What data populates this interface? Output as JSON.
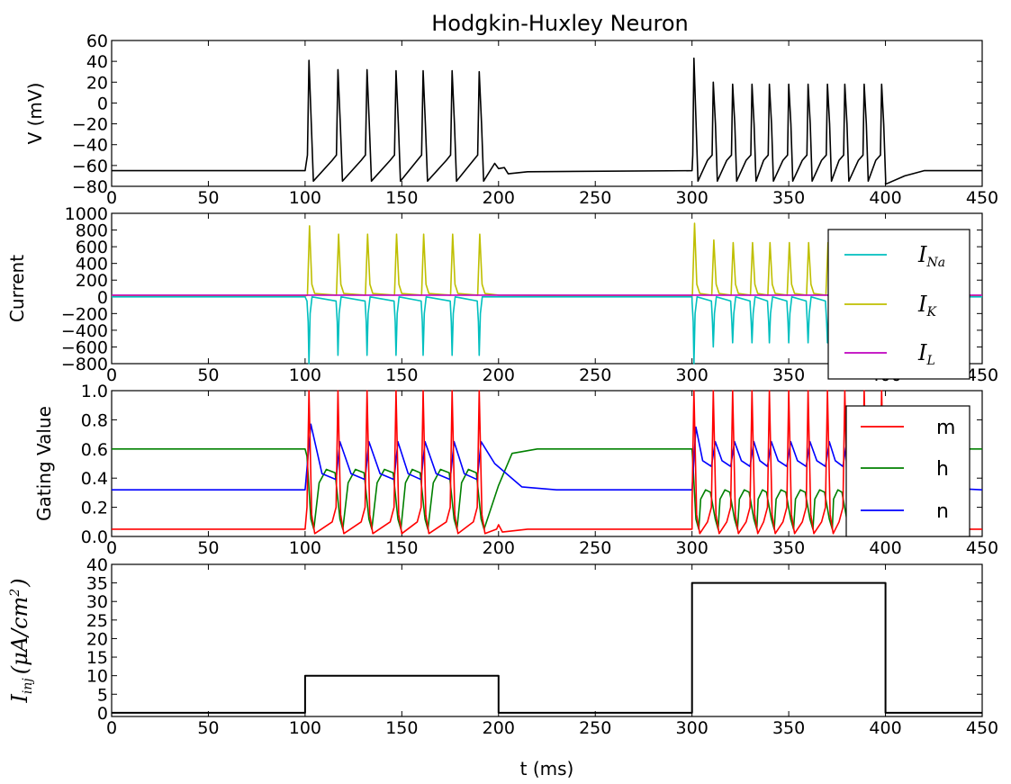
{
  "chart_data": [
    {
      "type": "line",
      "title": "Hodgkin-Huxley Neuron",
      "ylabel": "V (mV)",
      "xlim": [
        0,
        450
      ],
      "ylim": [
        -80,
        60
      ],
      "xticks": [
        "0",
        "50",
        "100",
        "150",
        "200",
        "250",
        "300",
        "350",
        "400",
        "450"
      ],
      "yticks": [
        "60",
        "40",
        "20",
        "0",
        "−20",
        "−40",
        "−60",
        "−80"
      ],
      "grid": false,
      "series": [
        {
          "color": "#000000",
          "rest": -65,
          "spike_times": [
            102,
            117,
            132,
            147,
            161,
            176,
            190,
            301,
            311,
            321,
            331,
            340,
            350,
            360,
            370,
            379,
            389,
            398
          ],
          "spike_peaks": [
            41,
            32,
            32,
            31,
            31,
            31,
            30,
            43,
            20,
            18,
            18,
            18,
            18,
            18,
            18,
            18,
            18,
            18
          ],
          "trough": -75
        }
      ]
    },
    {
      "type": "line",
      "ylabel": "Current",
      "xlim": [
        0,
        450
      ],
      "ylim": [
        -800,
        1000
      ],
      "xticks": [
        "0",
        "50",
        "100",
        "150",
        "200",
        "250",
        "300",
        "350",
        "400",
        "450"
      ],
      "yticks": [
        "1000",
        "800",
        "600",
        "400",
        "200",
        "0",
        "−200",
        "−400",
        "−600",
        "−800"
      ],
      "legend_position": "right",
      "series": [
        {
          "label_main": "I",
          "label_sub": "Na",
          "color": "#00bfbf",
          "peaks": [
            -800,
            -700,
            -700,
            -700,
            -700,
            -700,
            -700,
            -800,
            -600,
            -550,
            -550,
            -550,
            -550,
            -550,
            -550,
            -550,
            -550,
            -550
          ]
        },
        {
          "label_main": "I",
          "label_sub": "K",
          "color": "#bfbf00",
          "peaks": [
            850,
            750,
            750,
            750,
            750,
            750,
            750,
            880,
            680,
            650,
            650,
            650,
            650,
            650,
            650,
            650,
            650,
            650
          ]
        },
        {
          "label_main": "I",
          "label_sub": "L",
          "color": "#bf00bf",
          "value": 20
        }
      ]
    },
    {
      "type": "line",
      "ylabel": "Gating Value",
      "xlim": [
        0,
        450
      ],
      "ylim": [
        0.0,
        1.0
      ],
      "xticks": [
        "0",
        "50",
        "100",
        "150",
        "200",
        "250",
        "300",
        "350",
        "400",
        "450"
      ],
      "yticks": [
        "1.0",
        "0.8",
        "0.6",
        "0.4",
        "0.2",
        "0.0"
      ],
      "legend_position": "right",
      "series": [
        {
          "name": "m",
          "color": "#ff0000",
          "rest": 0.05,
          "peak": 1.0,
          "trough": 0.02
        },
        {
          "name": "h",
          "color": "#008000",
          "rest": 0.6,
          "burst1_peak": 0.46,
          "burst2_peak": 0.32,
          "trough": 0.05
        },
        {
          "name": "n",
          "color": "#0000ff",
          "rest": 0.32,
          "peak1": 0.77,
          "peak_later": 0.65,
          "trough1": 0.39,
          "trough2": 0.48
        }
      ]
    },
    {
      "type": "line",
      "ylabel_main": "I",
      "ylabel_sub": "inj",
      "ylabel_unit": "(μA/cm",
      "ylabel_sup": "2",
      "ylabel_close": ")",
      "xlabel": "t (ms)",
      "xlim": [
        0,
        450
      ],
      "ylim": [
        -1,
        40
      ],
      "xticks": [
        "0",
        "50",
        "100",
        "150",
        "200",
        "250",
        "300",
        "350",
        "400",
        "450"
      ],
      "yticks": [
        "40",
        "35",
        "30",
        "25",
        "20",
        "15",
        "10",
        "5",
        "0"
      ],
      "series": [
        {
          "color": "#000000",
          "x": [
            0,
            100,
            100,
            200,
            200,
            300,
            300,
            400,
            400,
            450
          ],
          "y": [
            0,
            0,
            10,
            10,
            0,
            0,
            35,
            35,
            0,
            0
          ]
        }
      ]
    }
  ]
}
